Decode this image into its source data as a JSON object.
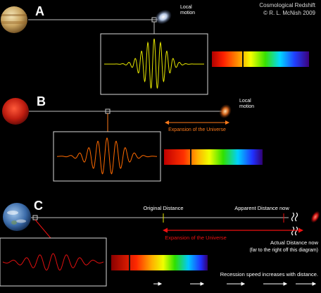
{
  "credits": {
    "title": "Cosmological Redshift",
    "author": "© R. L. McNish 2009"
  },
  "panels": [
    {
      "label": "A",
      "galaxy_label_line1": "Local",
      "galaxy_label_line2": "motion"
    },
    {
      "label": "B",
      "galaxy_label_line1": "Local",
      "galaxy_label_line2": "motion",
      "expansion_caption": "Expansion of the Universe"
    },
    {
      "label": "C",
      "original_distance": "Original Distance",
      "apparent_distance": "Apparent Distance now",
      "expansion_caption": "Expansion of the Universe",
      "actual_distance_line1": "Actual Distance now",
      "actual_distance_line2": "(far to the right off this diagram)",
      "recession_note": "Recession speed increases with distance."
    }
  ],
  "colors": {
    "wave_a": "#e6e600",
    "wave_b": "#ff6a00",
    "wave_c": "#e01010",
    "expansion_b": "#ff7a1a",
    "expansion_c": "#ee1111",
    "frame": "#d8d8d8",
    "line": "#bfbfbf"
  }
}
